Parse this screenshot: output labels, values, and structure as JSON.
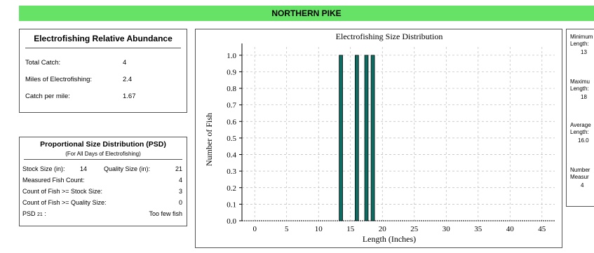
{
  "banner_title": "NORTHERN PIKE",
  "abundance": {
    "title": "Electrofishing Relative Abundance",
    "rows": [
      {
        "label": "Total Catch:",
        "value": "4"
      },
      {
        "label": "Miles of Electrofishing:",
        "value": "2.4"
      },
      {
        "label": "Catch per mile:",
        "value": "1.67"
      }
    ]
  },
  "psd": {
    "title": "Proportional Size Distribution (PSD)",
    "subtitle": "(For All Days of Electrofishing)",
    "stock_label": "Stock Size (in):",
    "stock_value": "14",
    "quality_label": "Quality Size (in):",
    "quality_value": "21",
    "rows": [
      {
        "label": "Measured Fish Count:",
        "value": "4"
      },
      {
        "label": "Count of Fish >= Stock Size:",
        "value": "3"
      },
      {
        "label": "Count of Fish >= Quality Size:",
        "value": "0"
      }
    ],
    "psd_label": "PSD",
    "psd_sub": "21",
    "psd_suffix": " :",
    "psd_value": "Too few fish"
  },
  "stats_panel": {
    "min_label_1": "Minimum",
    "min_label_2": "Length:",
    "min_value": "13",
    "max_label_1": "Maximu",
    "max_label_2": "Length:",
    "max_value": "18",
    "avg_label_1": "Average",
    "avg_label_2": "Length:",
    "avg_value": "16.0",
    "num_label_1": "Number",
    "num_label_2": "Measur",
    "num_value": "4"
  },
  "chart_data": {
    "type": "bar",
    "title": "Electrofishing Size Distribution",
    "xlabel": "Length (Inches)",
    "ylabel": "Number of Fish",
    "x": [
      13.5,
      16,
      17.5,
      18.5
    ],
    "values": [
      1,
      1,
      1,
      1
    ],
    "xlim": [
      -2,
      47
    ],
    "ylim": [
      0,
      1.05
    ],
    "xticks": [
      "0",
      "5",
      "10",
      "15",
      "20",
      "25",
      "30",
      "35",
      "40",
      "45"
    ],
    "xtick_values": [
      0,
      5,
      10,
      15,
      20,
      25,
      30,
      35,
      40,
      45
    ],
    "yticks": [
      "0.0",
      "0.1",
      "0.2",
      "0.3",
      "0.4",
      "0.5",
      "0.6",
      "0.7",
      "0.8",
      "0.9",
      "1.0"
    ],
    "ytick_values": [
      0,
      0.1,
      0.2,
      0.3,
      0.4,
      0.5,
      0.6,
      0.7,
      0.8,
      0.9,
      1.0
    ],
    "bar_color": "#0e6b61",
    "grid": true
  }
}
